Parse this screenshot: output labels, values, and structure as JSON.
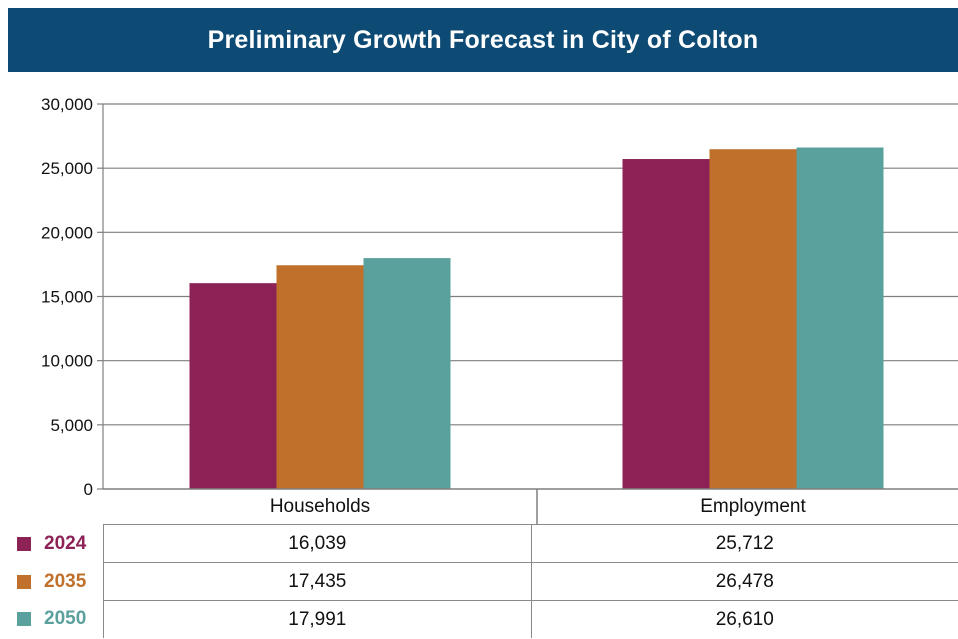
{
  "chart_data": {
    "type": "bar",
    "title": "Preliminary Growth Forecast in City of Colton",
    "categories": [
      "Households",
      "Employment"
    ],
    "series": [
      {
        "name": "2024",
        "values": [
          16039,
          25712
        ],
        "labels": [
          "16,039",
          "25,712"
        ],
        "color": "#8d2257"
      },
      {
        "name": "2035",
        "values": [
          17435,
          26478
        ],
        "labels": [
          "17,435",
          "26,478"
        ],
        "color": "#c0702a"
      },
      {
        "name": "2050",
        "values": [
          17991,
          26610
        ],
        "labels": [
          "17,991",
          "26,610"
        ],
        "color": "#5aa09d"
      }
    ],
    "ylim": [
      0,
      30000
    ],
    "yticks": [
      0,
      5000,
      10000,
      15000,
      20000,
      25000,
      30000
    ],
    "ytick_labels": [
      "0",
      "5,000",
      "10,000",
      "15,000",
      "20,000",
      "25,000",
      "30,000"
    ],
    "grid": true,
    "legend": "data table below chart",
    "axis_color": "#7f7f7f"
  }
}
